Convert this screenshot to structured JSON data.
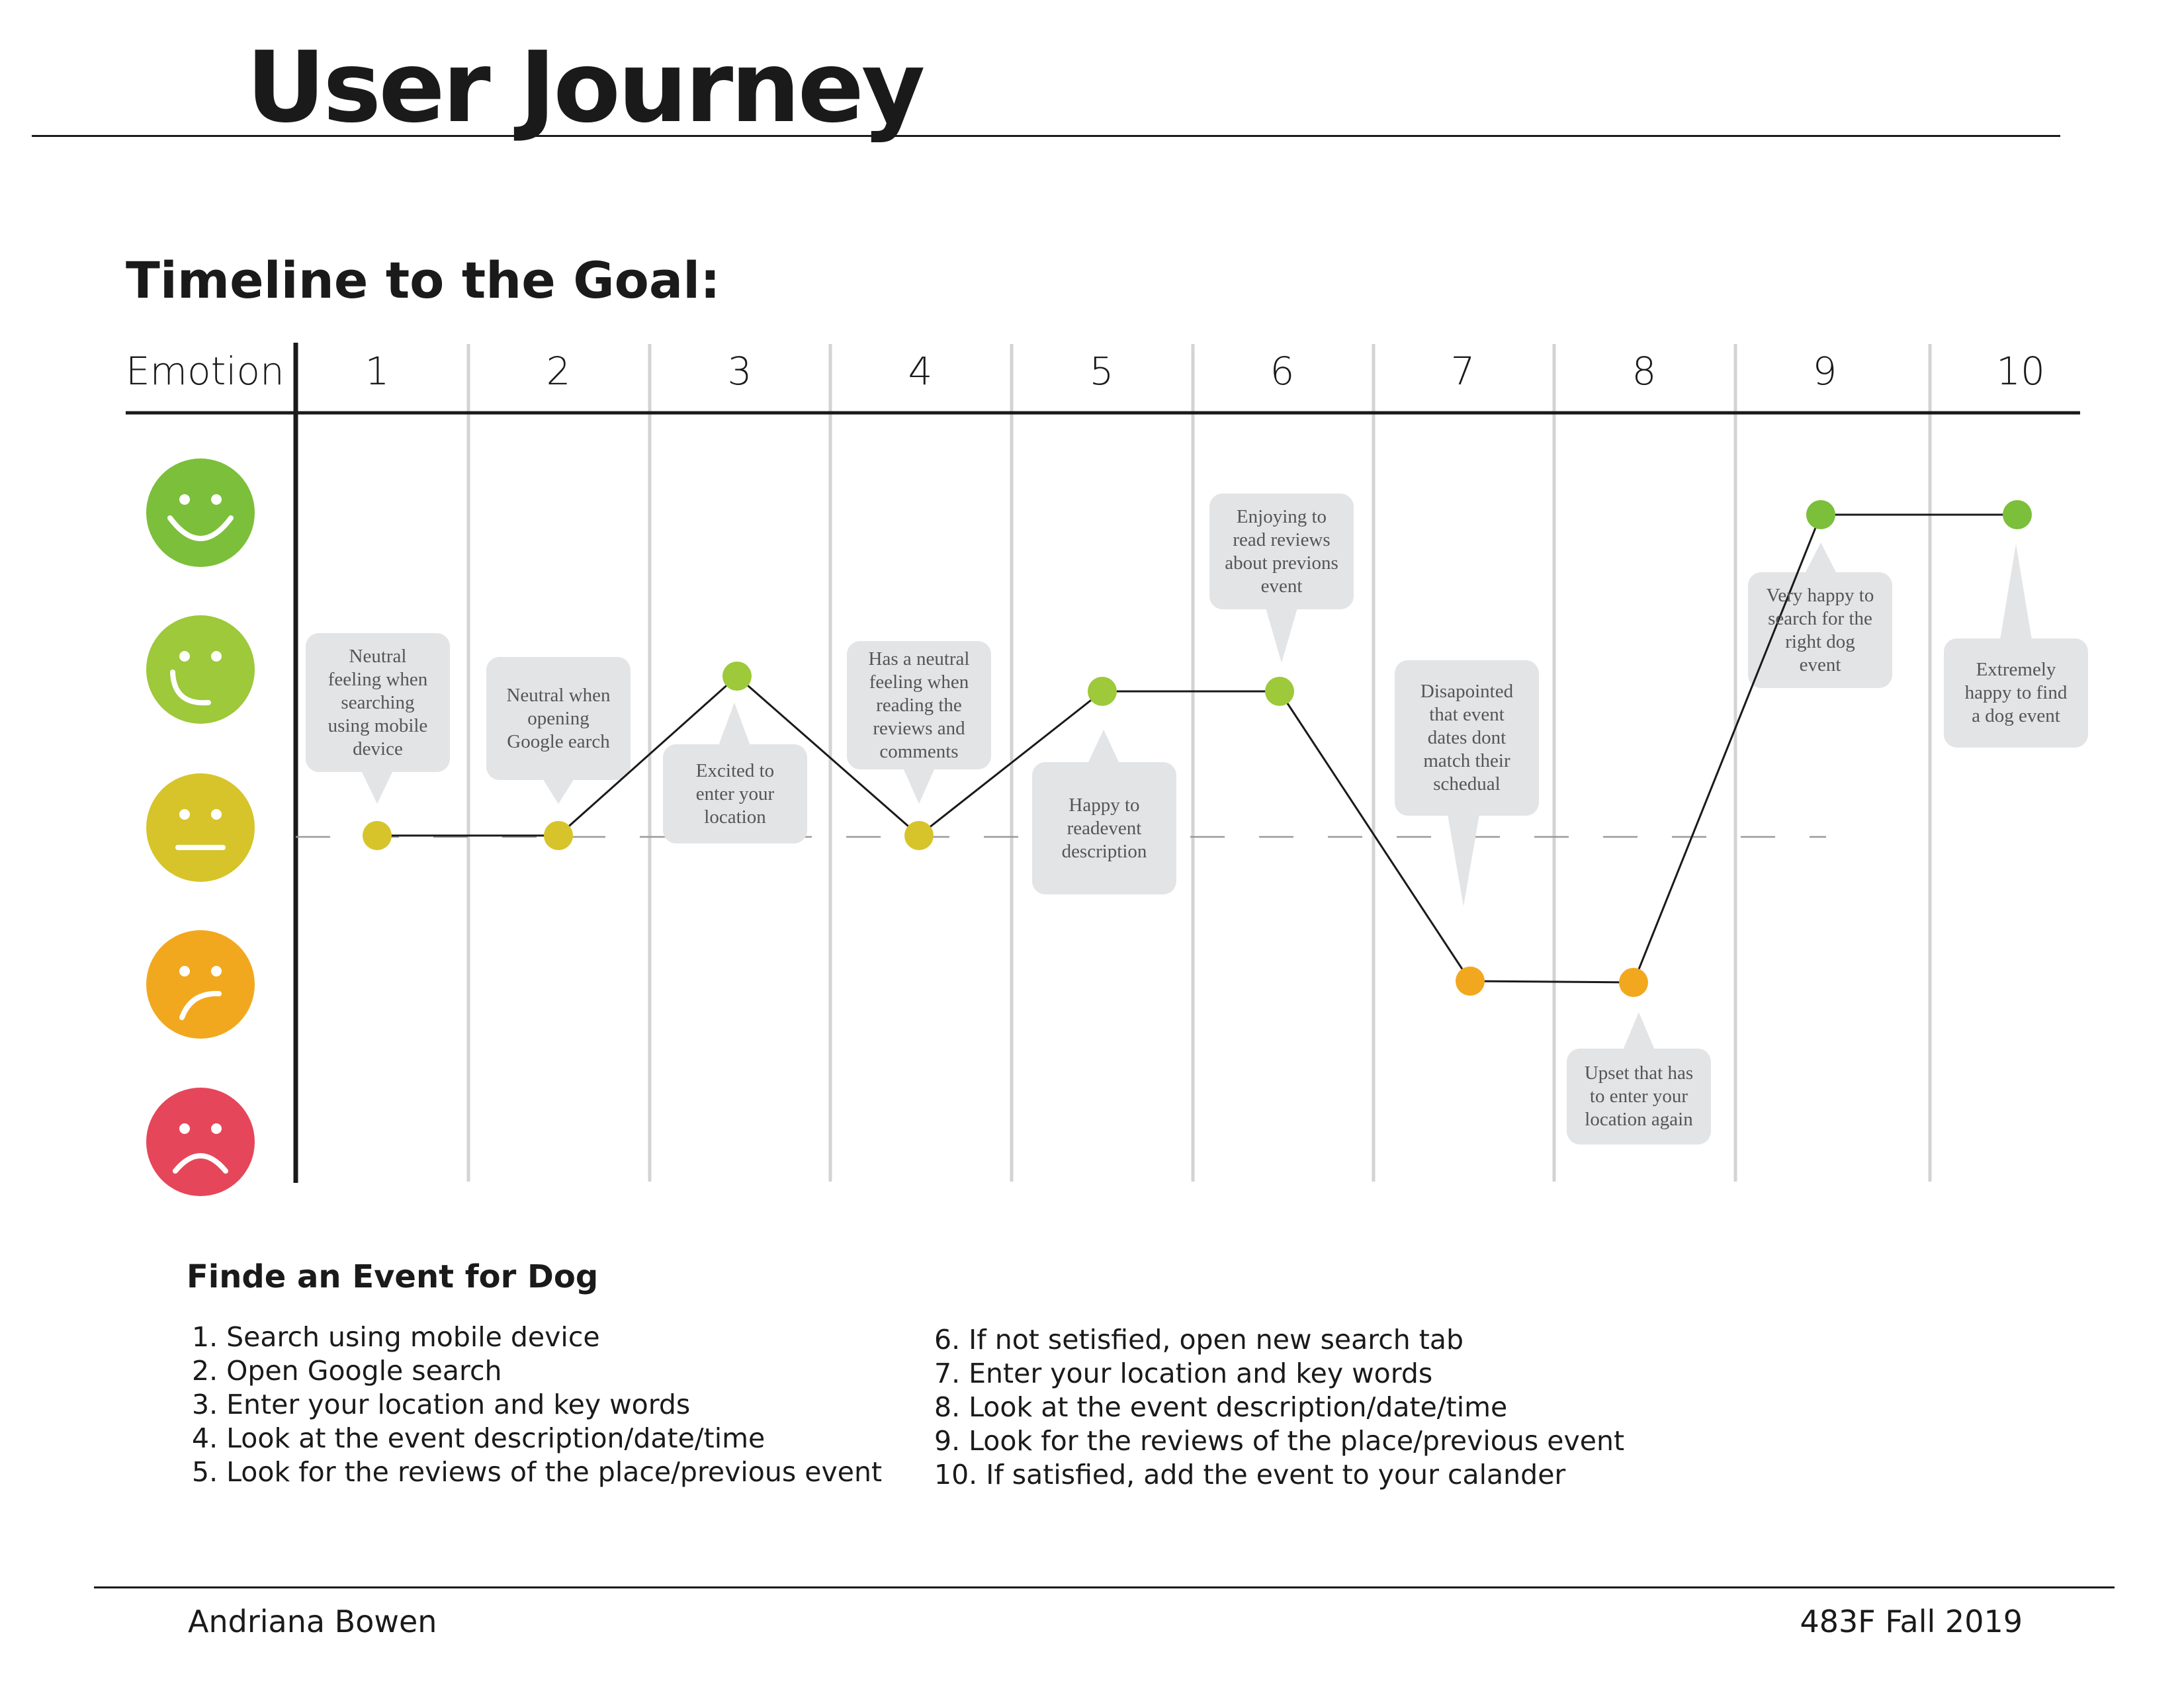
{
  "page": {
    "title": "User Journey",
    "subtitle": "Timeline to the Goal:"
  },
  "header": {
    "emotion_label": "Emotion",
    "steps": [
      "1",
      "2",
      "3",
      "4",
      "5",
      "6",
      "7",
      "8",
      "9",
      "10"
    ]
  },
  "emotion_scale": [
    {
      "level": 5,
      "icon": "very-happy-face-icon",
      "color": "#7bbf3a"
    },
    {
      "level": 4,
      "icon": "happy-face-icon",
      "color": "#9dc93a"
    },
    {
      "level": 3,
      "icon": "neutral-face-icon",
      "color": "#d6c42a"
    },
    {
      "level": 2,
      "icon": "sad-face-icon",
      "color": "#f2a81e"
    },
    {
      "level": 1,
      "icon": "very-sad-face-icon",
      "color": "#e6465a"
    }
  ],
  "journey": [
    {
      "step": "1",
      "level": 3,
      "note": [
        "Neutral",
        "feeling when",
        "searching",
        "using mobile",
        "device"
      ]
    },
    {
      "step": "2",
      "level": 3,
      "note": [
        "Neutral when",
        "opening",
        "Google earch"
      ]
    },
    {
      "step": "3",
      "level": 4,
      "note": [
        "Excited to",
        "enter your",
        "location"
      ]
    },
    {
      "step": "4",
      "level": 3,
      "note": [
        "Has a neutral",
        "feeling when",
        "reading the",
        "reviews and",
        "comments"
      ]
    },
    {
      "step": "5",
      "level": 4,
      "note": [
        "Happy to",
        "readevent",
        "description"
      ]
    },
    {
      "step": "6",
      "level": 4,
      "note": [
        "Enjoying to",
        "read reviews",
        "about previons",
        "event"
      ]
    },
    {
      "step": "7",
      "level": 2,
      "note": [
        "Disapointed",
        "that event",
        "dates dont",
        "match their",
        "schedual"
      ]
    },
    {
      "step": "8",
      "level": 2,
      "note": [
        "Upset that has",
        "to enter your",
        "location again"
      ]
    },
    {
      "step": "9",
      "level": 5,
      "note": [
        "Very happy to",
        "search for the",
        "right dog",
        "event"
      ]
    },
    {
      "step": "10",
      "level": 5,
      "note": [
        "Extremely",
        "happy to find",
        "a dog event"
      ]
    }
  ],
  "tasks": {
    "title": "Finde an Event for Dog",
    "items": [
      "1. Search using mobile device",
      "2. Open Google search",
      "3. Enter your location and key words",
      "4. Look at the event description/date/time",
      "5. Look for the reviews of the place/previous event",
      "6. If not setisfied, open new search tab",
      "7. Enter your location and key words",
      "8. Look at the event description/date/time",
      "9. Look for the reviews of the place/previous event",
      "10. If satisfied, add the event to your calander"
    ]
  },
  "footer": {
    "author": "Andriana Bowen",
    "course": "483F Fall 2019"
  },
  "colors": {
    "bubble": "#e3e4e6",
    "grid": "#d3d3d3",
    "line": "#1a1a1a"
  }
}
